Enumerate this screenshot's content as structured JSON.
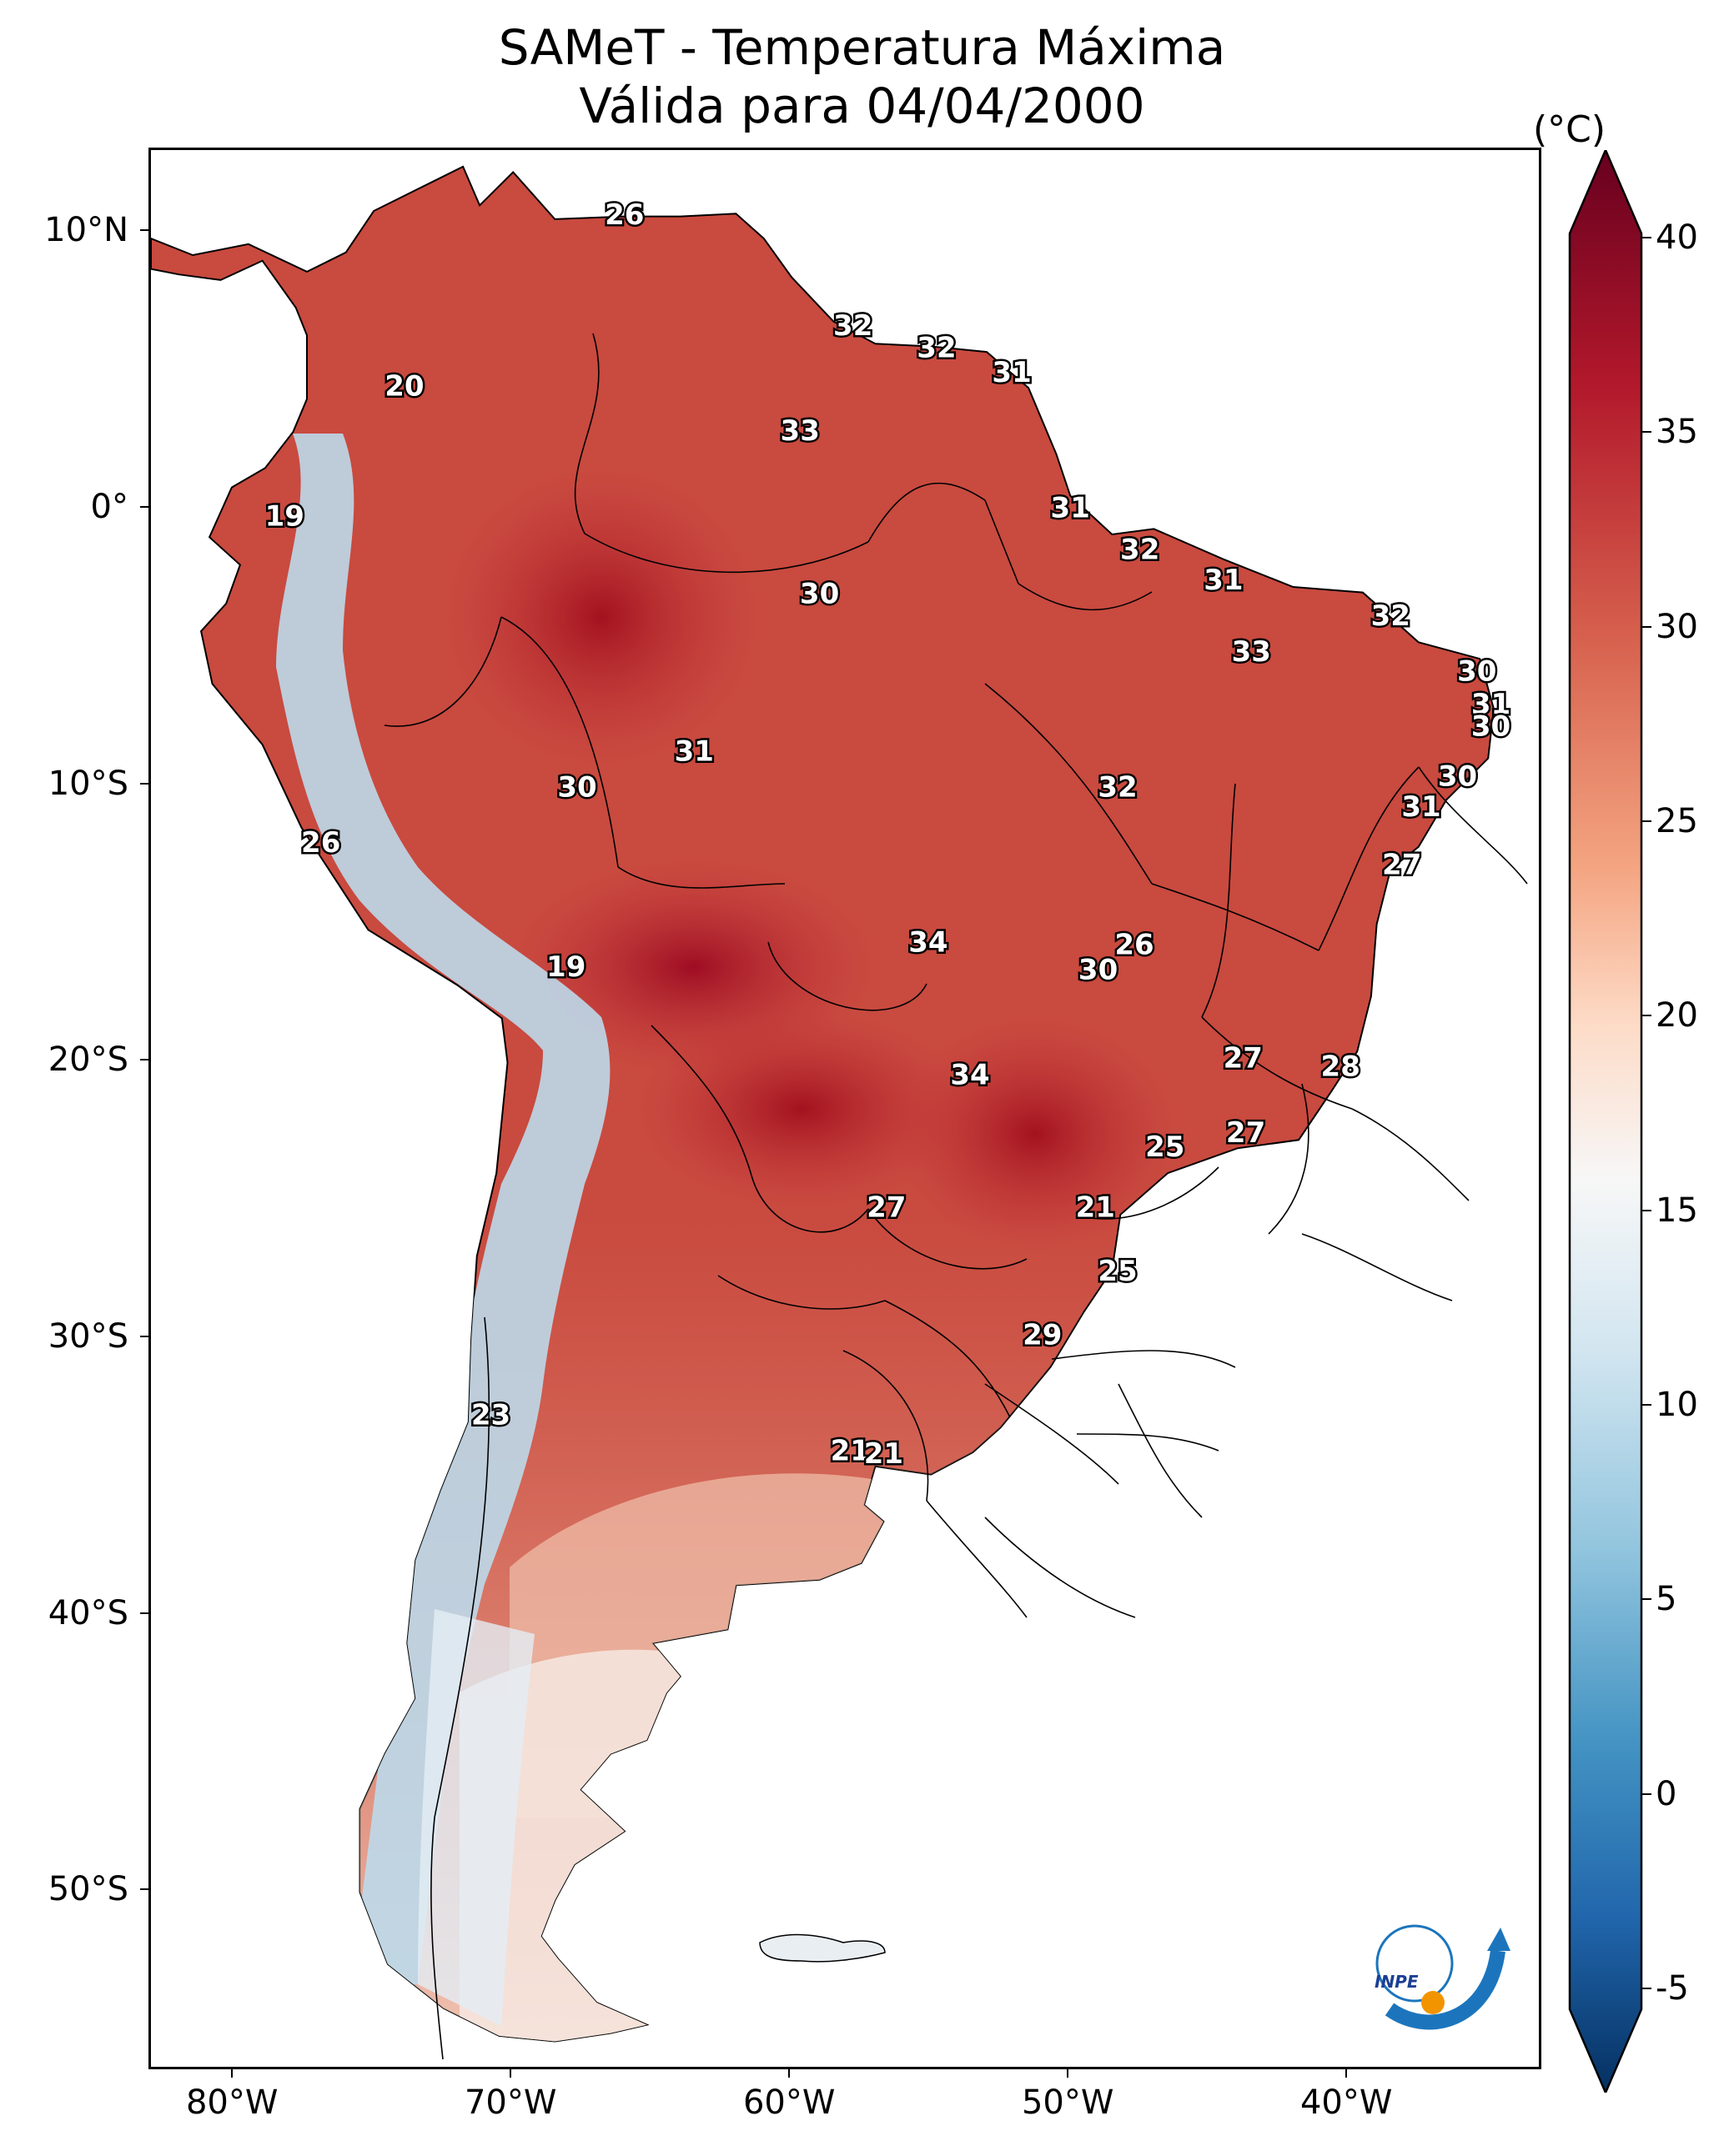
{
  "title": {
    "line1": "SAMeT - Temperatura Máxima",
    "line2": "Válida para 04/04/2000"
  },
  "map": {
    "region": "South America",
    "variable": "maximum temperature",
    "lat_labels": [
      "10°N",
      "0°",
      "10°S",
      "20°S",
      "30°S",
      "40°S",
      "50°S"
    ],
    "lon_labels": [
      "80°W",
      "70°W",
      "60°W",
      "50°W",
      "40°W"
    ],
    "contour_labels": [
      {
        "value": "26",
        "lon": -66.0,
        "lat": 10.6
      },
      {
        "value": "20",
        "lon": -73.9,
        "lat": 4.4
      },
      {
        "value": "32",
        "lon": -57.8,
        "lat": 6.6
      },
      {
        "value": "32",
        "lon": -54.8,
        "lat": 5.8
      },
      {
        "value": "31",
        "lon": -52.1,
        "lat": 4.9
      },
      {
        "value": "33",
        "lon": -59.7,
        "lat": 2.8
      },
      {
        "value": "19",
        "lon": -78.2,
        "lat": -0.3
      },
      {
        "value": "31",
        "lon": -50.0,
        "lat": -0.0
      },
      {
        "value": "32",
        "lon": -47.5,
        "lat": -1.5
      },
      {
        "value": "31",
        "lon": -44.5,
        "lat": -2.6
      },
      {
        "value": "30",
        "lon": -59.0,
        "lat": -3.1
      },
      {
        "value": "32",
        "lon": -38.5,
        "lat": -3.9
      },
      {
        "value": "33",
        "lon": -43.5,
        "lat": -5.2
      },
      {
        "value": "30",
        "lon": -35.4,
        "lat": -5.9
      },
      {
        "value": "31",
        "lon": -34.9,
        "lat": -7.1
      },
      {
        "value": "30",
        "lon": -34.9,
        "lat": -7.9
      },
      {
        "value": "31",
        "lon": -63.5,
        "lat": -8.8
      },
      {
        "value": "30",
        "lon": -67.7,
        "lat": -10.1
      },
      {
        "value": "32",
        "lon": -48.3,
        "lat": -10.1
      },
      {
        "value": "30",
        "lon": -36.1,
        "lat": -9.7
      },
      {
        "value": "31",
        "lon": -37.4,
        "lat": -10.8
      },
      {
        "value": "27",
        "lon": -38.1,
        "lat": -12.9
      },
      {
        "value": "26",
        "lon": -76.9,
        "lat": -12.1
      },
      {
        "value": "34",
        "lon": -55.1,
        "lat": -15.7
      },
      {
        "value": "26",
        "lon": -47.7,
        "lat": -15.8
      },
      {
        "value": "30",
        "lon": -49.0,
        "lat": -16.7
      },
      {
        "value": "19",
        "lon": -68.1,
        "lat": -16.6
      },
      {
        "value": "27",
        "lon": -43.8,
        "lat": -19.9
      },
      {
        "value": "28",
        "lon": -40.3,
        "lat": -20.2
      },
      {
        "value": "34",
        "lon": -53.6,
        "lat": -20.5
      },
      {
        "value": "27",
        "lon": -43.7,
        "lat": -22.6
      },
      {
        "value": "25",
        "lon": -46.6,
        "lat": -23.1
      },
      {
        "value": "27",
        "lon": -56.6,
        "lat": -25.3
      },
      {
        "value": "21",
        "lon": -49.1,
        "lat": -25.3
      },
      {
        "value": "25",
        "lon": -48.3,
        "lat": -27.6
      },
      {
        "value": "29",
        "lon": -51.0,
        "lat": -29.9
      },
      {
        "value": "23",
        "lon": -70.8,
        "lat": -32.8
      },
      {
        "value": "21",
        "lon": -57.9,
        "lat": -34.1
      },
      {
        "value": "21",
        "lon": -56.7,
        "lat": -34.2
      }
    ]
  },
  "colorbar": {
    "unit": "(°C)",
    "ticks": [
      "40",
      "35",
      "30",
      "25",
      "20",
      "15",
      "10",
      "5",
      "0",
      "-5"
    ],
    "colors": {
      "hot": "#67001f",
      "warm": "#d6604d",
      "neutral": "#f7f7f7",
      "cool": "#4393c3",
      "cold": "#053061"
    }
  },
  "logo": {
    "text": "INPE"
  }
}
